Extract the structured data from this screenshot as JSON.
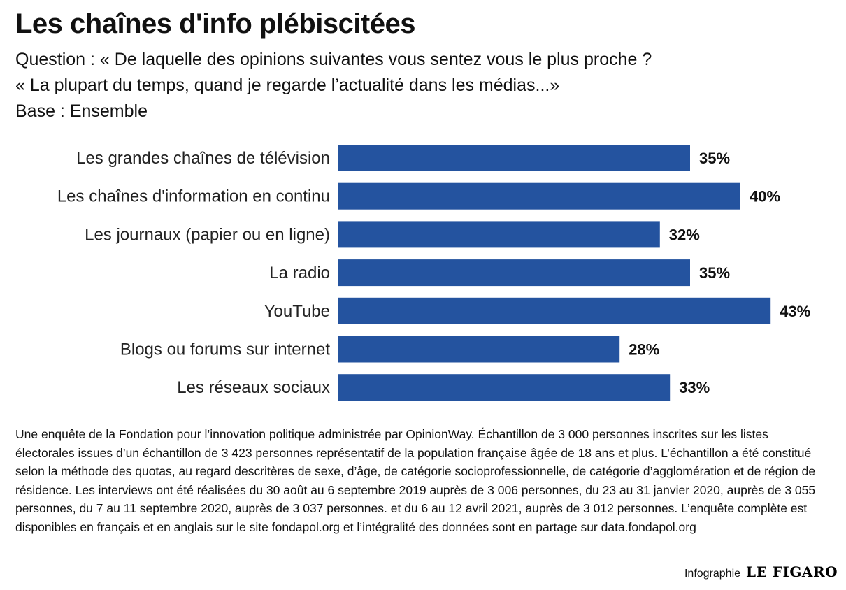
{
  "header": {
    "title": "Les chaînes d'info plébiscitées",
    "subtitle_1": "Question : « De laquelle des opinions suivantes vous sentez vous le plus proche ?",
    "subtitle_2": "« La plupart du temps, quand je regarde l’actualité dans les médias...»",
    "subtitle_3": "Base : Ensemble"
  },
  "chart_data": {
    "type": "bar",
    "orientation": "horizontal",
    "categories": [
      "Les grandes chaînes de télévision",
      "Les chaînes d'information en continu",
      "Les journaux (papier ou en ligne)",
      "La radio",
      "YouTube",
      "Blogs ou forums sur internet",
      "Les réseaux sociaux"
    ],
    "values": [
      35,
      40,
      32,
      35,
      43,
      28,
      33
    ],
    "value_labels": [
      "35%",
      "40%",
      "32%",
      "35%",
      "43%",
      "28%",
      "33%"
    ],
    "xlim": [
      0,
      45
    ],
    "grid": false,
    "bar_color": "#24539f"
  },
  "footer": {
    "note": "Une enquête de la Fondation pour l’innovation politique administrée par OpinionWay. Échantillon de 3 000 personnes inscrites sur les listes électorales issues d’un échantillon de 3 423 personnes représentatif de la population française âgée de 18 ans et plus. L’échantillon a été constitué selon la méthode des quotas, au regard descritères de sexe, d’âge, de catégorie socioprofessionnelle, de catégorie d’agglomération et de région de résidence. Les interviews ont été réalisées du 30 août au 6 septembre 2019 auprès de 3 006 personnes, du 23 au 31 janvier 2020, auprès de 3 055 personnes, du 7 au 11 septembre 2020, auprès de 3 037 personnes. et du 6 au 12 avril 2021, auprès de 3 012 personnes. L’enquête complète est disponibles en français et en anglais sur le site fondapol.org et l’intégralité des données sont en partage sur data.fondapol.org",
    "credit": "Infographie",
    "logo": "LE FIGARO"
  }
}
